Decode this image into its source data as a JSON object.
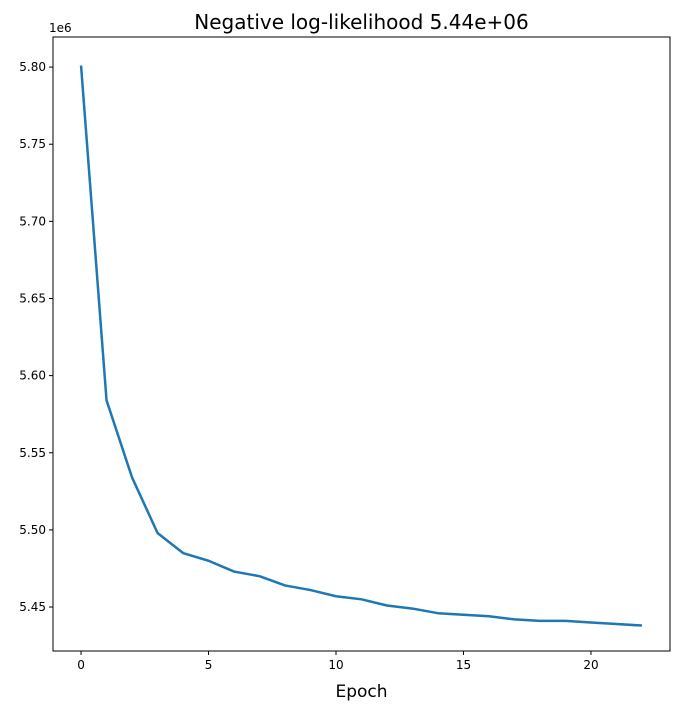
{
  "chart_data": {
    "type": "line",
    "title": "Negative log-likelihood 5.44e+06",
    "xlabel": "Epoch",
    "ylabel": "",
    "y_offset_label": "1e6",
    "xlim": [
      -1.1,
      23.1
    ],
    "ylim": [
      5.4215,
      5.8195
    ],
    "xticks": [
      0,
      5,
      10,
      15,
      20
    ],
    "xtick_labels": [
      "0",
      "5",
      "10",
      "15",
      "20"
    ],
    "yticks": [
      5.45,
      5.5,
      5.55,
      5.6,
      5.65,
      5.7,
      5.75,
      5.8
    ],
    "ytick_labels": [
      "5.45",
      "5.50",
      "5.55",
      "5.60",
      "5.65",
      "5.70",
      "5.75",
      "5.80"
    ],
    "grid": false,
    "series": [
      {
        "color": "#1f77b4",
        "x": [
          0,
          1,
          2,
          3,
          4,
          5,
          6,
          7,
          8,
          9,
          10,
          11,
          12,
          13,
          14,
          15,
          16,
          17,
          18,
          19,
          20,
          21,
          22
        ],
        "y": [
          5.801,
          5.584,
          5.534,
          5.498,
          5.485,
          5.48,
          5.473,
          5.47,
          5.464,
          5.461,
          5.457,
          5.455,
          5.451,
          5.449,
          5.446,
          5.445,
          5.444,
          5.442,
          5.441,
          5.441,
          5.44,
          5.439,
          5.438
        ]
      }
    ]
  }
}
